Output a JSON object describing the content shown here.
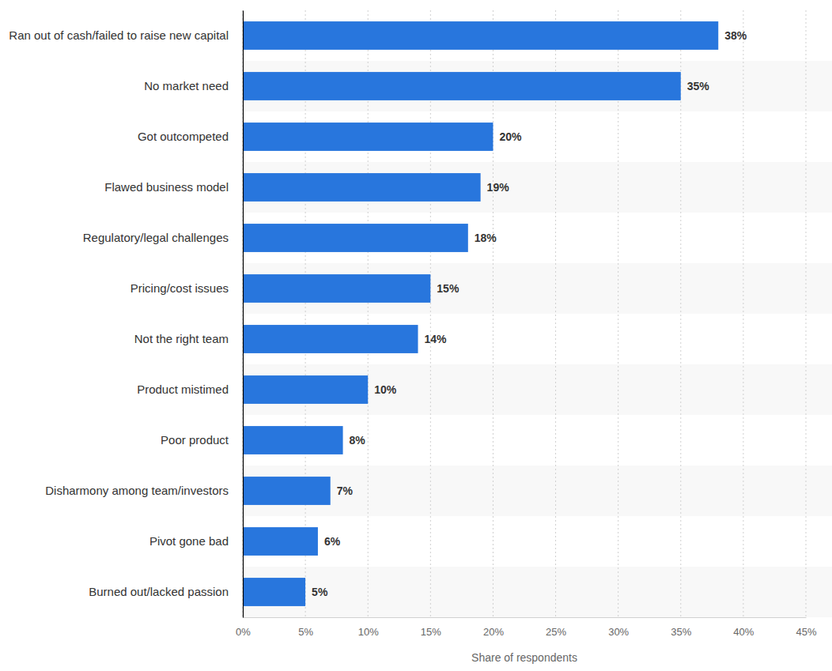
{
  "chart_data": {
    "type": "bar",
    "orientation": "horizontal",
    "categories": [
      "Ran out of cash/failed to raise new capital",
      "No market need",
      "Got outcompeted",
      "Flawed business model",
      "Regulatory/legal challenges",
      "Pricing/cost issues",
      "Not the right team",
      "Product mistimed",
      "Poor product",
      "Disharmony among team/investors",
      "Pivot gone bad",
      "Burned out/lacked passion"
    ],
    "values": [
      38,
      35,
      20,
      19,
      18,
      15,
      14,
      10,
      8,
      7,
      6,
      5
    ],
    "value_labels": [
      "38%",
      "35%",
      "20%",
      "19%",
      "18%",
      "15%",
      "14%",
      "10%",
      "8%",
      "7%",
      "6%",
      "5%"
    ],
    "color": "#2876dd",
    "xlim": [
      0,
      45
    ],
    "xticks": [
      {
        "value": 0,
        "label": "0%"
      },
      {
        "value": 5,
        "label": "5%"
      },
      {
        "value": 10,
        "label": "10%"
      },
      {
        "value": 15,
        "label": "15%"
      },
      {
        "value": 20,
        "label": "20%"
      },
      {
        "value": 25,
        "label": "25%"
      },
      {
        "value": 30,
        "label": "30%"
      },
      {
        "value": 35,
        "label": "35%"
      },
      {
        "value": 40,
        "label": "40%"
      },
      {
        "value": 45,
        "label": "45%"
      }
    ],
    "xlabel": "Share of respondents",
    "grid": true,
    "data_labels": true
  }
}
